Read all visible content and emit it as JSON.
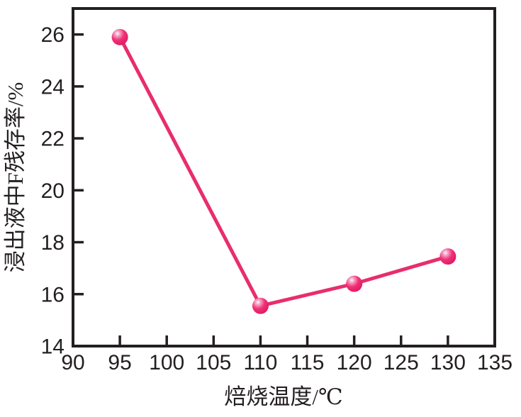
{
  "figure": {
    "background": "#ffffff"
  },
  "chart_data": {
    "type": "line",
    "title": "",
    "x": [
      95,
      110,
      120,
      130
    ],
    "y": [
      25.9,
      15.55,
      16.4,
      17.45
    ],
    "xlabel": "焙烧温度/℃",
    "ylabel": "浸出液中F残存率/%",
    "xlim": [
      90,
      135
    ],
    "ylim": [
      14,
      27
    ],
    "xticks": [
      90,
      95,
      100,
      105,
      110,
      115,
      120,
      125,
      130,
      135
    ],
    "yticks": [
      14,
      16,
      18,
      20,
      22,
      24,
      26
    ],
    "grid": false,
    "legend": "none",
    "marker_style": "sphere",
    "colors": {
      "line": "#e82d6e",
      "marker_highlight": "#ffffff",
      "marker_light": "#f9a8cb",
      "marker_main": "#ee3277",
      "marker_deep": "#e51e66",
      "marker_edge": "#c3125a",
      "axis": "#231f20",
      "text": "#231f20"
    }
  }
}
